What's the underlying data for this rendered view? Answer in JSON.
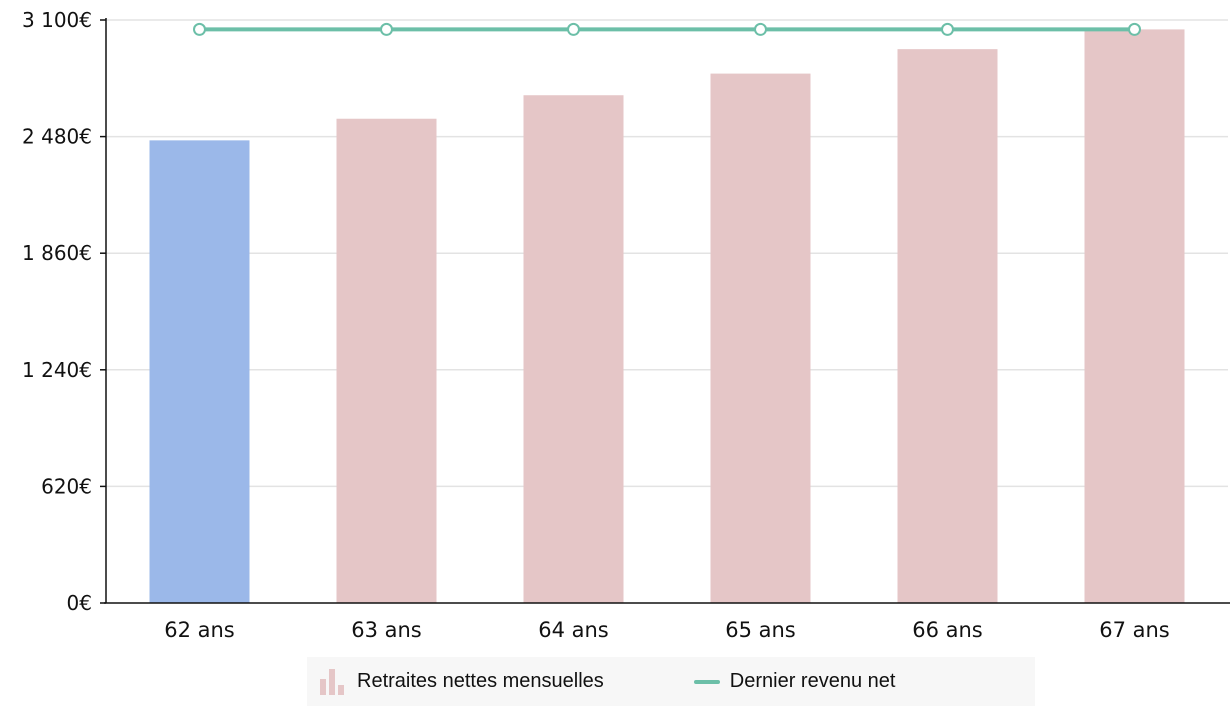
{
  "chart_data": {
    "type": "bar",
    "categories": [
      "62 ans",
      "63 ans",
      "64 ans",
      "65 ans",
      "66 ans",
      "67 ans"
    ],
    "series": [
      {
        "name": "Retraites nettes mensuelles",
        "type": "bar",
        "values": [
          2460,
          2575,
          2700,
          2815,
          2945,
          3050
        ],
        "colors": [
          "#9bb8e9",
          "#e5c6c7",
          "#e5c6c7",
          "#e5c6c7",
          "#e5c6c7",
          "#e5c6c7"
        ]
      },
      {
        "name": "Dernier revenu net",
        "type": "line",
        "values": [
          3050,
          3050,
          3050,
          3050,
          3050,
          3050
        ],
        "color": "#6cbfa8"
      }
    ],
    "ylim": [
      0,
      3100
    ],
    "yticks": [
      0,
      620,
      1240,
      1860,
      2480,
      3100
    ],
    "ytick_labels": [
      "0€",
      "620€",
      "1 240€",
      "1 860€",
      "2 480€",
      "3 100€"
    ],
    "grid": true,
    "legend_position": "bottom"
  },
  "legend": {
    "bars_label": "Retraites nettes mensuelles",
    "line_label": "Dernier revenu net",
    "bars_icon_color": "#e5c6c7",
    "line_icon_color": "#6cbfa8"
  }
}
